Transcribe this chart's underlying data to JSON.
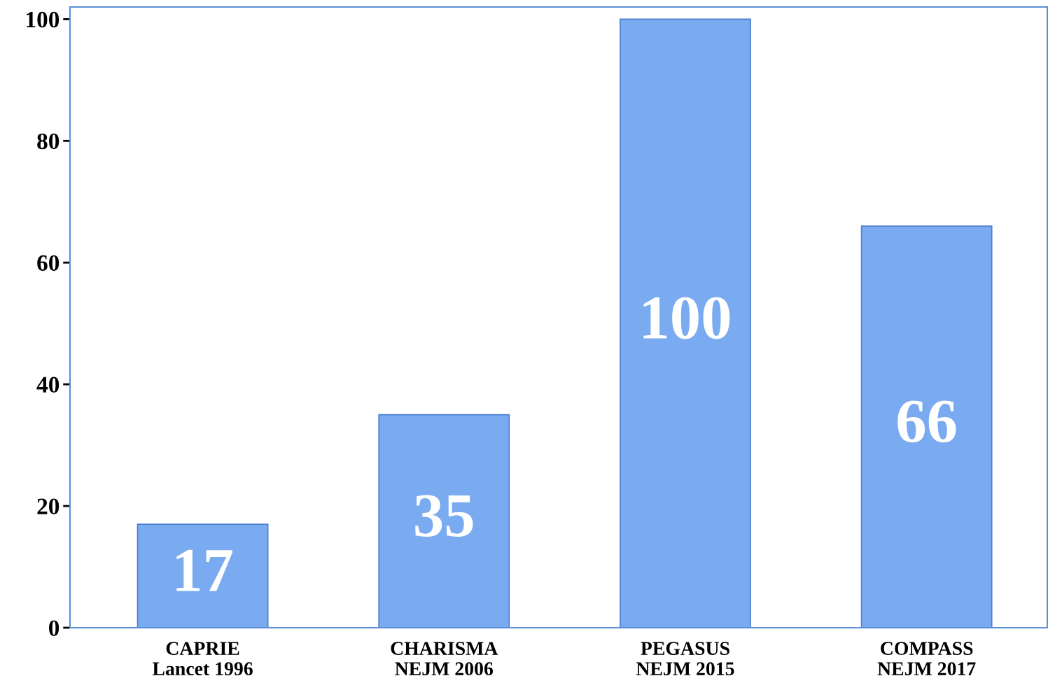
{
  "chart_data": {
    "type": "bar",
    "categories": [
      "CAPRIE\nLancet 1996",
      "CHARISMA\nNEJM 2006",
      "PEGASUS\nNEJM 2015",
      "COMPASS\nNEJM 2017"
    ],
    "values": [
      17,
      35,
      100,
      66
    ],
    "color": "#7aaaf0",
    "data_labels": true,
    "ylim": [
      0,
      102
    ],
    "yticks": [
      0,
      20,
      40,
      60,
      80,
      100
    ],
    "grid": false,
    "legend": false
  }
}
